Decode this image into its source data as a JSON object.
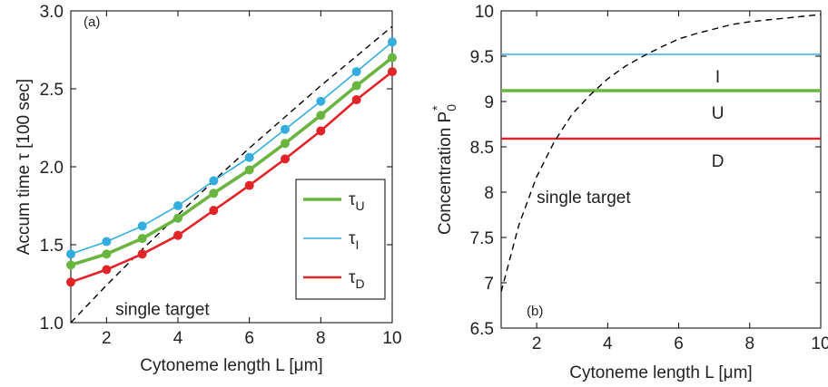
{
  "chart_data": [
    {
      "type": "line",
      "panel_label": "(a)",
      "xlabel": "Cytoneme length L [μm]",
      "ylabel": "Accum time τ [100 sec]",
      "xlim": [
        1,
        10
      ],
      "ylim": [
        1.0,
        3.0
      ],
      "xticks": [
        2,
        4,
        6,
        8,
        10
      ],
      "yticks": [
        1.0,
        1.5,
        2.0,
        2.5,
        3.0
      ],
      "ytick_labels": [
        "1.0",
        "1.5",
        "2.0",
        "2.5",
        "3.0"
      ],
      "grid": false,
      "legend_position": "lower-right",
      "x": [
        1,
        2,
        3,
        4,
        5,
        6,
        7,
        8,
        9,
        10
      ],
      "series": [
        {
          "name": "τU",
          "name_base": "τ",
          "name_sub": "U",
          "color": "#6ab540",
          "line_width": "thick",
          "values": [
            1.37,
            1.44,
            1.54,
            1.67,
            1.83,
            1.98,
            2.15,
            2.33,
            2.52,
            2.7
          ]
        },
        {
          "name": "τI",
          "name_base": "τ",
          "name_sub": "I",
          "color": "#33ade0",
          "line_width": "thin",
          "values": [
            1.44,
            1.52,
            1.62,
            1.75,
            1.91,
            2.06,
            2.24,
            2.42,
            2.61,
            2.8
          ]
        },
        {
          "name": "τD",
          "name_base": "τ",
          "name_sub": "D",
          "color": "#e02428",
          "line_width": "medium",
          "values": [
            1.26,
            1.34,
            1.44,
            1.56,
            1.72,
            1.88,
            2.05,
            2.23,
            2.43,
            2.61
          ]
        }
      ],
      "reference_curve": {
        "label": "single target",
        "style": "dashed",
        "color": "#000000",
        "x": [
          1,
          2,
          3,
          4,
          5,
          6,
          7,
          8,
          9,
          10
        ],
        "values": [
          1.0,
          1.24,
          1.47,
          1.69,
          1.91,
          2.12,
          2.32,
          2.52,
          2.71,
          2.9
        ]
      }
    },
    {
      "type": "line",
      "panel_label": "(b)",
      "xlabel": "Cytoneme length L [μm]",
      "ylabel_base": "Concentration P",
      "ylabel_sub": "0",
      "ylabel_sup": "*",
      "xlim": [
        1,
        10
      ],
      "ylim": [
        6.5,
        10
      ],
      "xticks": [
        2,
        4,
        6,
        8,
        10
      ],
      "yticks": [
        6.5,
        7,
        7.5,
        8,
        8.5,
        9,
        9.5,
        10
      ],
      "ytick_labels": [
        "6.5",
        "7",
        "7.5",
        "8",
        "8.5",
        "9",
        "9.5",
        "10"
      ],
      "grid": false,
      "series": [
        {
          "name": "I",
          "color": "#33ade0",
          "line_width": "thin",
          "value": 9.52,
          "label_x": 7.1,
          "label_y": 9.28
        },
        {
          "name": "U",
          "color": "#6ab540",
          "line_width": "thick",
          "value": 9.12,
          "label_x": 7.1,
          "label_y": 8.88
        },
        {
          "name": "D",
          "color": "#e02428",
          "line_width": "medium",
          "value": 8.59,
          "label_x": 7.1,
          "label_y": 8.35
        }
      ],
      "reference_curve": {
        "label": "single target",
        "style": "dashed",
        "color": "#000000",
        "x": [
          1,
          1.5,
          2,
          2.5,
          3,
          3.5,
          4,
          4.5,
          5,
          5.5,
          6,
          6.5,
          7,
          7.5,
          8,
          8.5,
          9,
          9.5,
          10
        ],
        "values": [
          6.9,
          7.64,
          8.17,
          8.56,
          8.86,
          9.07,
          9.25,
          9.39,
          9.5,
          9.6,
          9.69,
          9.75,
          9.8,
          9.85,
          9.88,
          9.9,
          9.92,
          9.94,
          9.96
        ]
      }
    }
  ]
}
